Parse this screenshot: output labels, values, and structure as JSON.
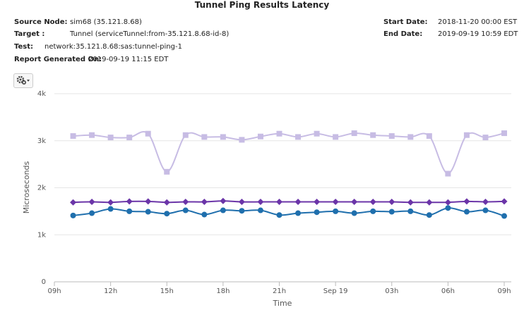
{
  "header": {
    "title": "Tunnel Ping Results Latency",
    "left_fields": [
      {
        "label": "Source Node:",
        "value": "sim68 (35.121.8.68)"
      },
      {
        "label": "Target :",
        "value": "Tunnel (serviceTunnel:from-35.121.8.68-id-8)"
      },
      {
        "label": "Test:",
        "value": "network:35.121.8.68:sas:tunnel-ping-1"
      },
      {
        "label": "Report Generated On:",
        "value": "2019-09-19 11:15 EDT"
      }
    ],
    "right_fields": [
      {
        "label": "Start Date:",
        "value": "2018-11-20 00:00 EST"
      },
      {
        "label": "End Date:",
        "value": "2019-09-19 10:59 EDT"
      }
    ]
  },
  "chart_data": {
    "type": "line",
    "x_label": "Time",
    "y_label": "Microseconds",
    "x": [
      1,
      2,
      3,
      4,
      5,
      6,
      7,
      8,
      9,
      10,
      11,
      12,
      13,
      14,
      15,
      16,
      17,
      18,
      19,
      20,
      21,
      22,
      23,
      24
    ],
    "xlim": [
      0,
      24
    ],
    "xticks": [
      {
        "value": 0,
        "label": "09h"
      },
      {
        "value": 3,
        "label": "12h"
      },
      {
        "value": 6,
        "label": "15h"
      },
      {
        "value": 9,
        "label": "18h"
      },
      {
        "value": 12,
        "label": "21h"
      },
      {
        "value": 15,
        "label": "Sep 19"
      },
      {
        "value": 18,
        "label": "03h"
      },
      {
        "value": 21,
        "label": "06h"
      },
      {
        "value": 24,
        "label": "09h"
      }
    ],
    "ylim": [
      0,
      4000
    ],
    "yticks": [
      0,
      {
        "value": 1000,
        "label": "1k"
      },
      {
        "value": 2000,
        "label": "2k"
      },
      {
        "value": 3000,
        "label": "3k"
      },
      {
        "value": 4000,
        "label": "4k"
      }
    ],
    "grid": true,
    "series": [
      {
        "color": "#c7bce4",
        "marker": "square",
        "values": [
          3100,
          3120,
          3070,
          3070,
          3150,
          2340,
          3120,
          3080,
          3080,
          3020,
          3090,
          3150,
          3080,
          3150,
          3080,
          3160,
          3120,
          3100,
          3080,
          3100,
          2300,
          3120,
          3070,
          3160
        ]
      },
      {
        "color": "#6b35a8",
        "marker": "diamond",
        "values": [
          1690,
          1700,
          1690,
          1710,
          1710,
          1690,
          1700,
          1700,
          1720,
          1700,
          1700,
          1700,
          1700,
          1700,
          1700,
          1700,
          1700,
          1700,
          1690,
          1690,
          1690,
          1710,
          1700,
          1710
        ]
      },
      {
        "color": "#1f6fad",
        "marker": "circle",
        "values": [
          1410,
          1460,
          1550,
          1500,
          1490,
          1450,
          1520,
          1430,
          1520,
          1510,
          1520,
          1420,
          1460,
          1480,
          1500,
          1460,
          1500,
          1490,
          1500,
          1420,
          1570,
          1490,
          1520,
          1400
        ]
      }
    ]
  }
}
